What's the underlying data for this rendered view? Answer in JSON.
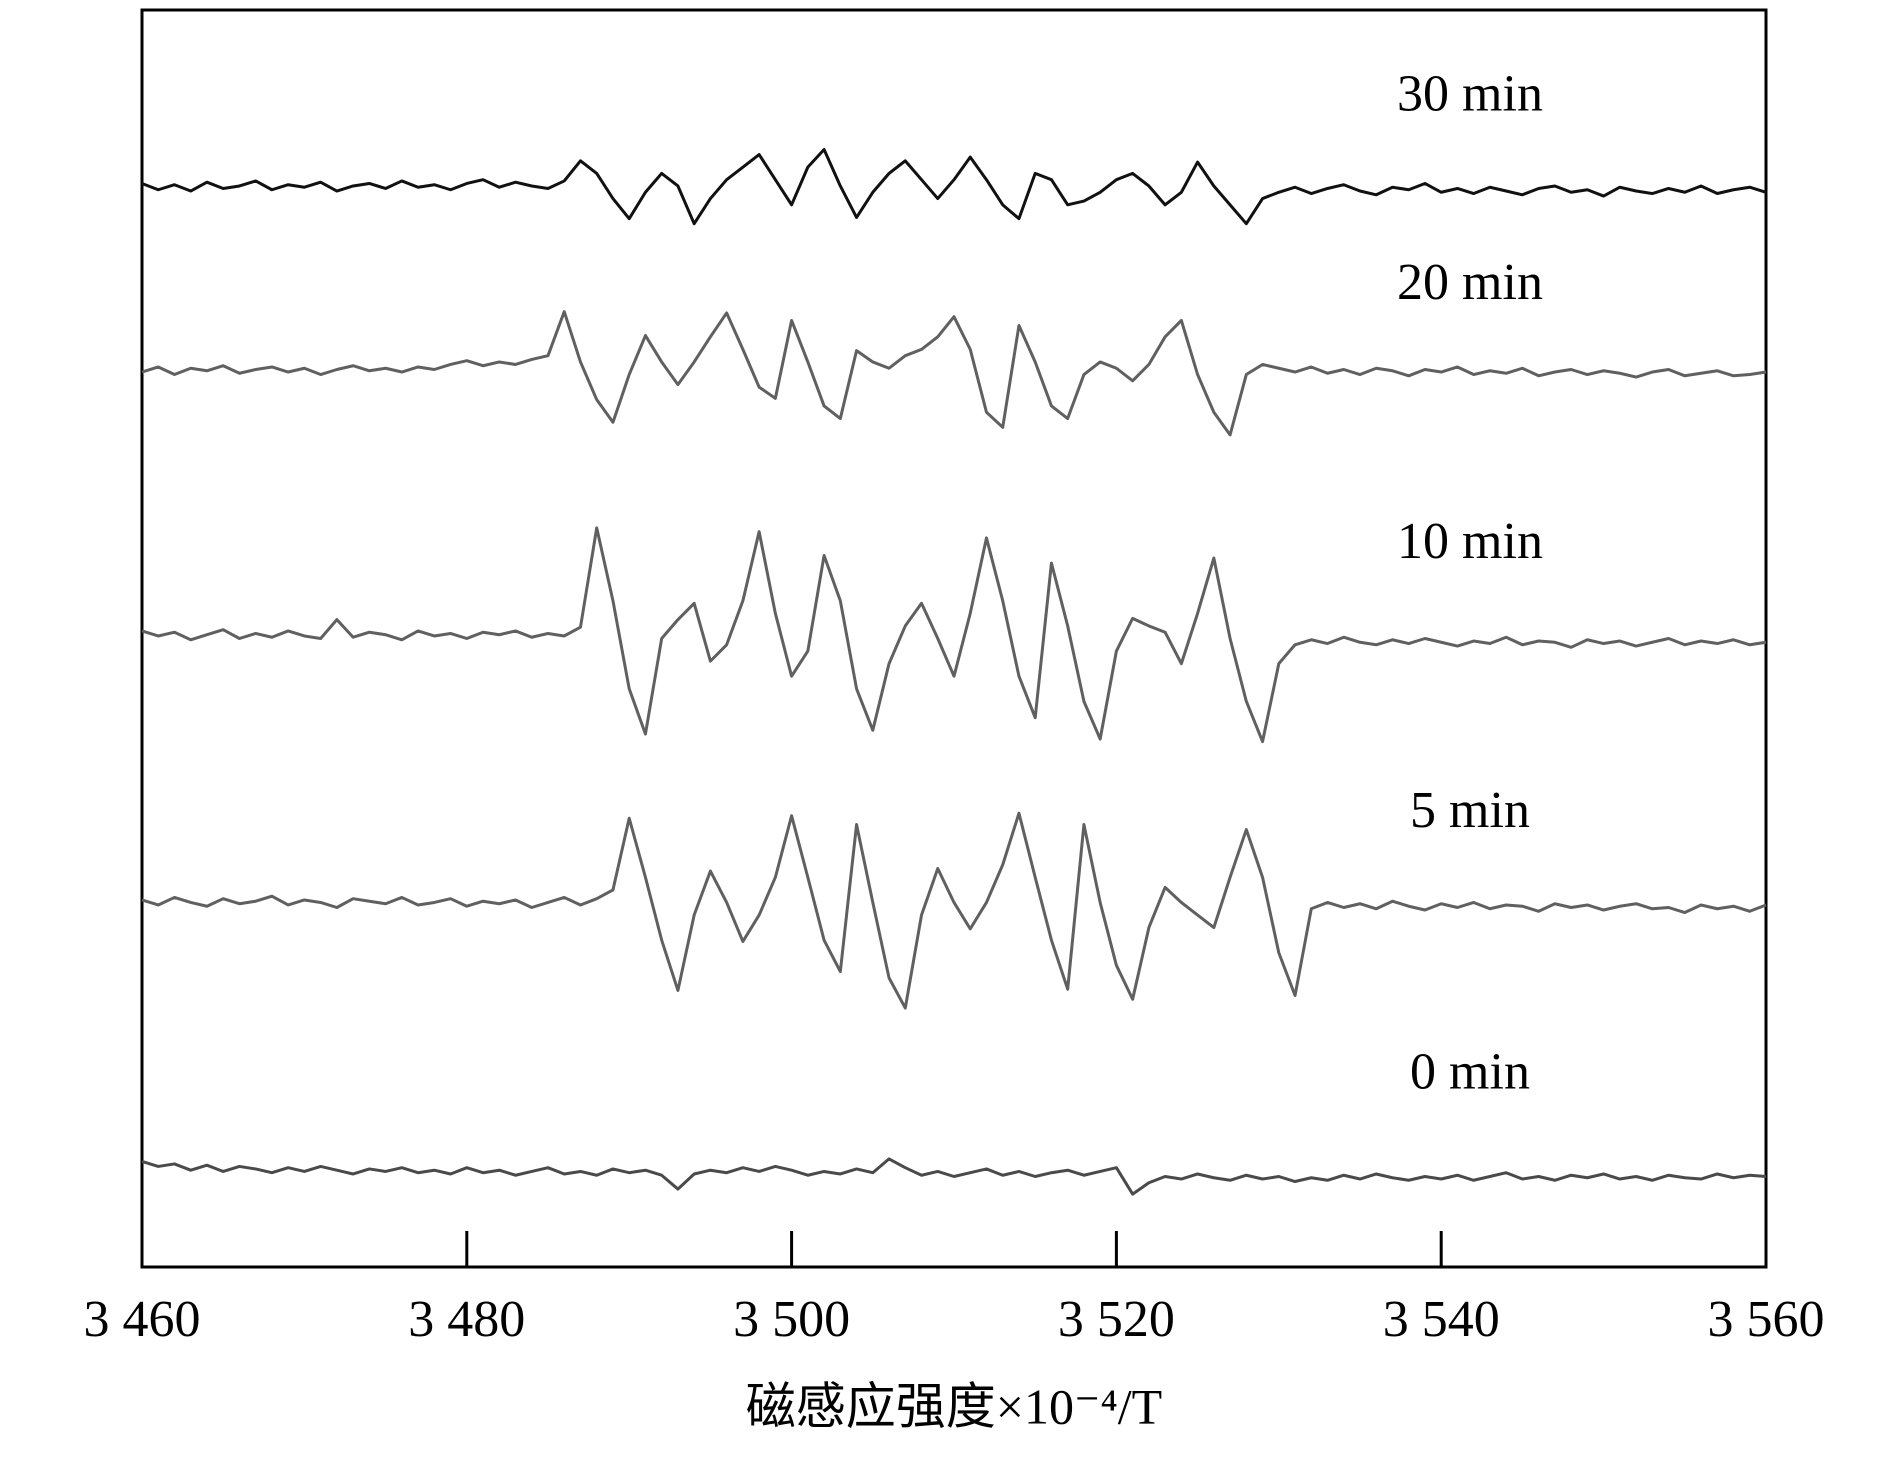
{
  "chart_data": {
    "type": "line",
    "xlabel": "磁感应强度×10⁻⁴/T",
    "xlim": [
      3460,
      3560
    ],
    "xticks": [
      {
        "value": 3460,
        "label": "3 460"
      },
      {
        "value": 3480,
        "label": "3 480"
      },
      {
        "value": 3500,
        "label": "3 500"
      },
      {
        "value": 3520,
        "label": "3 520"
      },
      {
        "value": 3540,
        "label": "3 540"
      },
      {
        "value": 3560,
        "label": "3 560"
      }
    ],
    "ylim": [
      0,
      100
    ],
    "x": [
      3460,
      3461,
      3462,
      3463,
      3464,
      3465,
      3466,
      3467,
      3468,
      3469,
      3470,
      3471,
      3472,
      3473,
      3474,
      3475,
      3476,
      3477,
      3478,
      3479,
      3480,
      3481,
      3482,
      3483,
      3484,
      3485,
      3486,
      3487,
      3488,
      3489,
      3490,
      3491,
      3492,
      3493,
      3494,
      3495,
      3496,
      3497,
      3498,
      3499,
      3500,
      3501,
      3502,
      3503,
      3504,
      3505,
      3506,
      3507,
      3508,
      3509,
      3510,
      3511,
      3512,
      3513,
      3514,
      3515,
      3516,
      3517,
      3518,
      3519,
      3520,
      3521,
      3522,
      3523,
      3524,
      3525,
      3526,
      3527,
      3528,
      3529,
      3530,
      3531,
      3532,
      3533,
      3534,
      3535,
      3536,
      3537,
      3538,
      3539,
      3540,
      3541,
      3542,
      3543,
      3544,
      3545,
      3546,
      3547,
      3548,
      3549,
      3550,
      3551,
      3552,
      3553,
      3554,
      3555,
      3556,
      3557,
      3558,
      3559,
      3560
    ],
    "series": [
      {
        "name": "30 min",
        "color": "#111111",
        "values": [
          86.2,
          85.7,
          86.1,
          85.6,
          86.3,
          85.8,
          86.0,
          86.4,
          85.7,
          86.1,
          85.9,
          86.3,
          85.6,
          86.0,
          86.2,
          85.8,
          86.4,
          85.9,
          86.1,
          85.7,
          86.2,
          86.5,
          85.9,
          86.3,
          86.0,
          85.8,
          86.4,
          88,
          87,
          85,
          83.4,
          85.5,
          87,
          86,
          83,
          85,
          86.5,
          87.5,
          88.5,
          86.5,
          84.5,
          87.5,
          88.9,
          86,
          83.5,
          85.5,
          87,
          88,
          86.5,
          85,
          86.5,
          88.3,
          86.5,
          84.5,
          83.4,
          87,
          86.5,
          84.5,
          84.8,
          85.5,
          86.5,
          87,
          86,
          84.5,
          85.5,
          87.9,
          86,
          84.5,
          83,
          85,
          85.5,
          85.9,
          85.4,
          85.8,
          86.1,
          85.6,
          85.3,
          85.9,
          85.7,
          86.2,
          85.5,
          85.8,
          85.4,
          85.9,
          85.6,
          85.3,
          85.8,
          86.0,
          85.5,
          85.7,
          85.2,
          85.9,
          85.6,
          85.4,
          85.8,
          85.5,
          86.0,
          85.4,
          85.7,
          85.9,
          85.5
        ]
      },
      {
        "name": "20 min",
        "color": "#606060",
        "values": [
          71.2,
          71.6,
          71.0,
          71.5,
          71.3,
          71.7,
          71.1,
          71.4,
          71.6,
          71.2,
          71.5,
          71.0,
          71.4,
          71.7,
          71.3,
          71.5,
          71.2,
          71.6,
          71.4,
          71.8,
          72.1,
          71.7,
          72.0,
          71.8,
          72.2,
          72.5,
          76,
          72,
          69,
          67.2,
          71,
          74.1,
          72,
          70.2,
          72,
          74,
          75.9,
          73,
          70,
          69.1,
          75.3,
          72,
          68.5,
          67.5,
          72.9,
          72,
          71.5,
          72.5,
          73,
          74,
          75.6,
          73,
          68,
          66.8,
          74.9,
          72,
          68.5,
          67.5,
          71,
          72,
          71.5,
          70.5,
          71.8,
          74,
          75.3,
          71,
          68,
          66.2,
          71,
          71.8,
          71.5,
          71.2,
          71.6,
          71.1,
          71.4,
          71.0,
          71.5,
          71.3,
          70.9,
          71.4,
          71.2,
          71.6,
          71.0,
          71.3,
          71.1,
          71.5,
          70.9,
          71.2,
          71.4,
          71.0,
          71.3,
          71.1,
          70.8,
          71.2,
          71.4,
          70.9,
          71.1,
          71.3,
          70.9,
          71.0,
          71.2
        ]
      },
      {
        "name": "10 min",
        "color": "#606060",
        "values": [
          50.6,
          50.2,
          50.5,
          49.9,
          50.3,
          50.7,
          50.0,
          50.4,
          50.1,
          50.6,
          50.2,
          50.0,
          51.5,
          50.1,
          50.5,
          50.3,
          49.9,
          50.6,
          50.2,
          50.4,
          50.0,
          50.5,
          50.3,
          50.6,
          50.1,
          50.4,
          50.2,
          50.9,
          58.8,
          53,
          46,
          42.4,
          50,
          51.5,
          52.8,
          48.2,
          49.5,
          53,
          58.5,
          52,
          47,
          49,
          56.6,
          53,
          46,
          42.7,
          48,
          51,
          52.8,
          50,
          47,
          52,
          58,
          53,
          47,
          43.7,
          56,
          51,
          45,
          42,
          49,
          51.6,
          51,
          50.5,
          48,
          52,
          56.4,
          50,
          45,
          41.8,
          48,
          49.5,
          49.9,
          49.6,
          50.1,
          49.7,
          49.5,
          49.9,
          49.6,
          50.0,
          49.7,
          49.4,
          49.8,
          49.6,
          50.1,
          49.5,
          49.8,
          49.7,
          49.3,
          49.9,
          49.6,
          49.8,
          49.4,
          49.7,
          50.0,
          49.5,
          49.8,
          49.6,
          49.9,
          49.5,
          49.7
        ]
      },
      {
        "name": "5 min",
        "color": "#606060",
        "values": [
          29.2,
          28.8,
          29.4,
          29.0,
          28.7,
          29.3,
          28.9,
          29.1,
          29.5,
          28.8,
          29.2,
          29.0,
          28.6,
          29.3,
          29.1,
          28.9,
          29.4,
          28.8,
          29.0,
          29.3,
          28.7,
          29.1,
          28.9,
          29.2,
          28.6,
          29.0,
          29.4,
          28.8,
          29.3,
          30,
          35.7,
          31,
          26,
          22,
          28,
          31.5,
          29,
          25.9,
          28,
          31,
          35.9,
          31,
          26,
          23.5,
          35.2,
          29,
          23,
          20.6,
          28,
          31.7,
          29,
          26.9,
          29,
          32,
          36.1,
          31,
          26,
          22.1,
          35.2,
          29,
          24,
          21.3,
          27,
          30.2,
          29,
          28,
          27,
          31,
          34.8,
          31,
          25,
          21.6,
          28.5,
          29.0,
          28.6,
          28.9,
          28.5,
          29.1,
          28.7,
          28.4,
          28.9,
          28.6,
          29.0,
          28.5,
          28.8,
          28.7,
          28.3,
          28.9,
          28.6,
          28.8,
          28.4,
          28.7,
          28.9,
          28.5,
          28.6,
          28.2,
          28.8,
          28.5,
          28.7,
          28.3,
          28.8
        ]
      },
      {
        "name": "0 min",
        "color": "#4a4a4a",
        "values": [
          8.4,
          8.0,
          8.2,
          7.7,
          8.1,
          7.6,
          8.0,
          7.8,
          7.5,
          7.9,
          7.6,
          8.0,
          7.7,
          7.4,
          7.8,
          7.6,
          7.9,
          7.5,
          7.7,
          7.4,
          7.9,
          7.5,
          7.7,
          7.3,
          7.6,
          7.9,
          7.4,
          7.6,
          7.3,
          7.8,
          7.5,
          7.7,
          7.3,
          6.2,
          7.4,
          7.7,
          7.5,
          7.9,
          7.6,
          8.0,
          7.7,
          7.3,
          7.6,
          7.4,
          7.8,
          7.5,
          8.6,
          7.9,
          7.3,
          7.6,
          7.2,
          7.5,
          7.8,
          7.3,
          7.6,
          7.2,
          7.5,
          7.7,
          7.3,
          7.6,
          7.9,
          5.8,
          6.7,
          7.2,
          7.0,
          7.4,
          7.1,
          6.9,
          7.3,
          7.0,
          7.2,
          6.8,
          7.1,
          6.9,
          7.3,
          7.0,
          7.4,
          7.1,
          6.9,
          7.2,
          7.0,
          7.3,
          6.9,
          7.2,
          7.5,
          7.0,
          7.2,
          6.9,
          7.3,
          7.1,
          7.4,
          7.0,
          7.2,
          6.9,
          7.3,
          7.1,
          7.0,
          7.4,
          7.1,
          7.3,
          7.2
        ]
      }
    ]
  }
}
